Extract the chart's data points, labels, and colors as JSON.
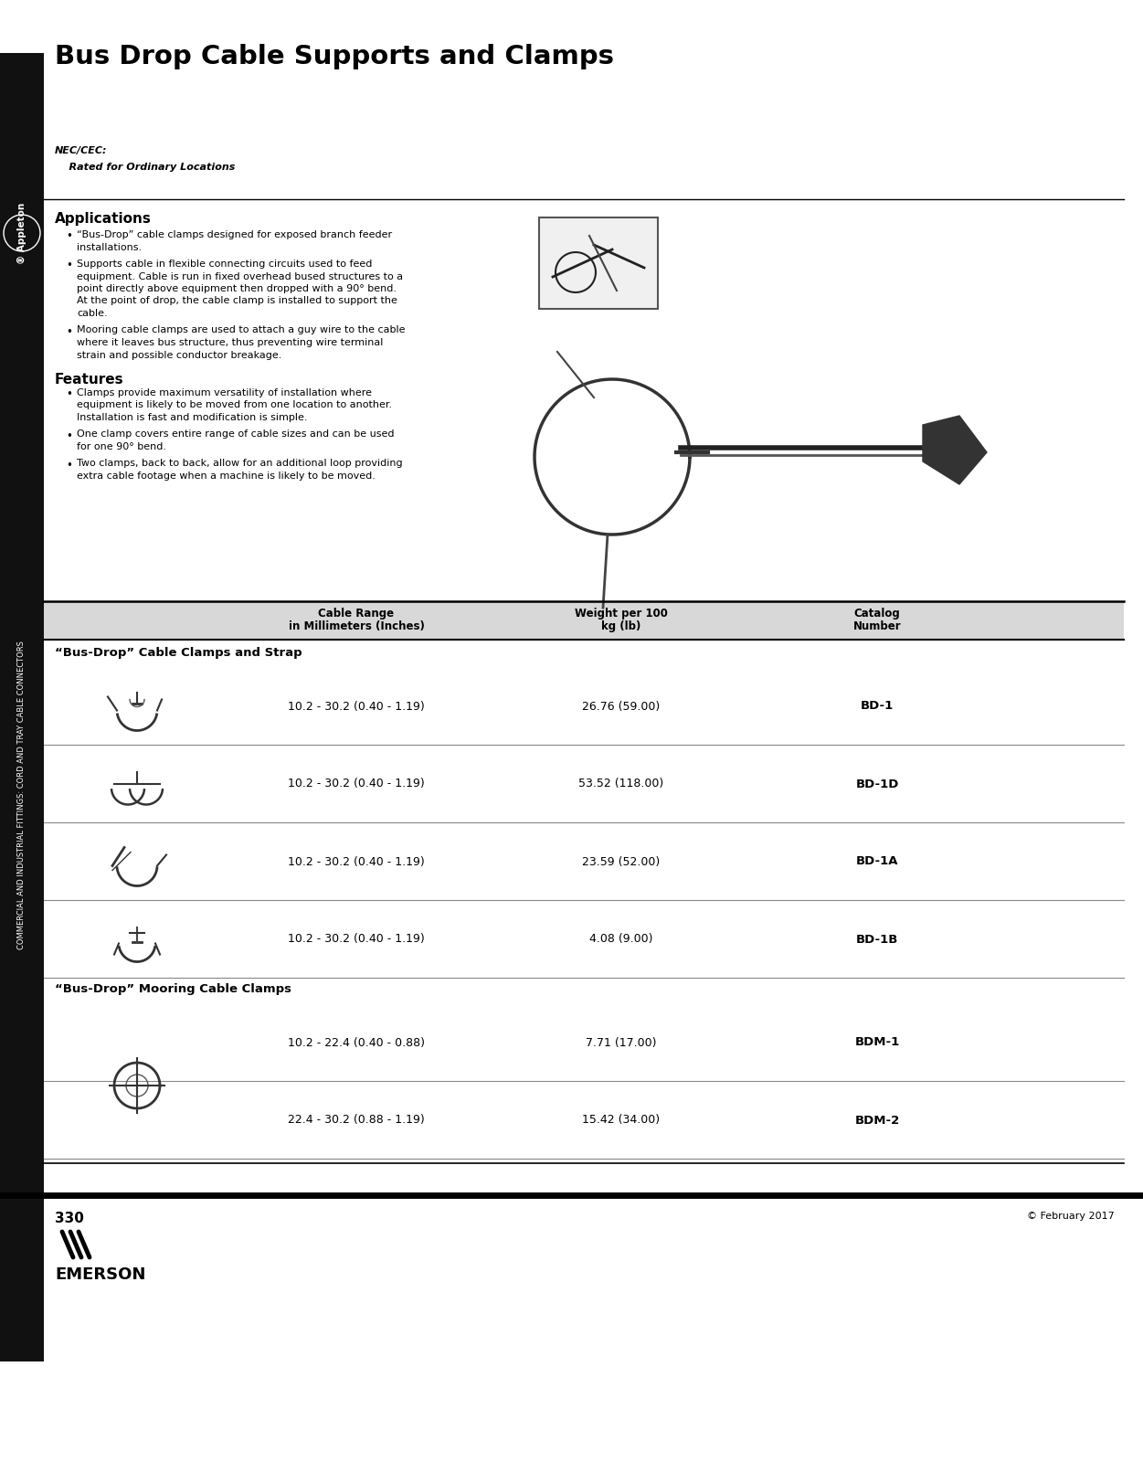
{
  "title": "Bus Drop Cable Supports and Clamps",
  "page_number": "330",
  "copyright": "© February 2017",
  "nec_cec_label": "NEC/CEC:",
  "nec_cec_sublabel": "    Rated for Ordinary Locations",
  "sidebar_text": "COMMERCIAL AND INDUSTRIAL FITTINGS: CORD AND TRAY CABLE CONNECTORS",
  "appleton_text": "® Appleton",
  "applications_title": "Applications",
  "applications_bullets": [
    "“Bus-Drop” cable clamps designed for exposed branch feeder\ninstallations.",
    "Supports cable in flexible connecting circuits used to feed\nequipment. Cable is run in fixed overhead bused structures to a\npoint directly above equipment then dropped with a 90° bend.\nAt the point of drop, the cable clamp is installed to support the\ncable.",
    "Mooring cable clamps are used to attach a guy wire to the cable\nwhere it leaves bus structure, thus preventing wire terminal\nstrain and possible conductor breakage."
  ],
  "features_title": "Features",
  "features_bullets": [
    "Clamps provide maximum versatility of installation where\nequipment is likely to be moved from one location to another.\nInstallation is fast and modification is simple.",
    "One clamp covers entire range of cable sizes and can be used\nfor one 90° bend.",
    "Two clamps, back to back, allow for an additional loop providing\nextra cable footage when a machine is likely to be moved."
  ],
  "table_header": [
    "Cable Range\nin Millimeters (Inches)",
    "Weight per 100\nkg (lb)",
    "Catalog\nNumber"
  ],
  "section1_title": "“Bus-Drop” Cable Clamps and Strap",
  "section1_rows": [
    {
      "cable_range": "10.2 - 30.2 (0.40 - 1.19)",
      "weight": "26.76 (59.00)",
      "catalog": "BD-1"
    },
    {
      "cable_range": "10.2 - 30.2 (0.40 - 1.19)",
      "weight": "53.52 (118.00)",
      "catalog": "BD-1D"
    },
    {
      "cable_range": "10.2 - 30.2 (0.40 - 1.19)",
      "weight": "23.59 (52.00)",
      "catalog": "BD-1A"
    },
    {
      "cable_range": "10.2 - 30.2 (0.40 - 1.19)",
      "weight": "4.08 (9.00)",
      "catalog": "BD-1B"
    }
  ],
  "section2_title": "“Bus-Drop” Mooring Cable Clamps",
  "section2_rows": [
    {
      "cable_range": "10.2 - 22.4 (0.40 - 0.88)",
      "weight": "7.71 (17.00)",
      "catalog": "BDM-1"
    },
    {
      "cable_range": "22.4 - 30.2 (0.88 - 1.19)",
      "weight": "15.42 (34.00)",
      "catalog": "BDM-2"
    }
  ],
  "bg_color": "#ffffff",
  "sidebar_bg": "#111111",
  "sidebar_text_color": "#ffffff",
  "header_bg": "#d8d8d8",
  "title_color": "#000000",
  "table_line_color": "#888888"
}
